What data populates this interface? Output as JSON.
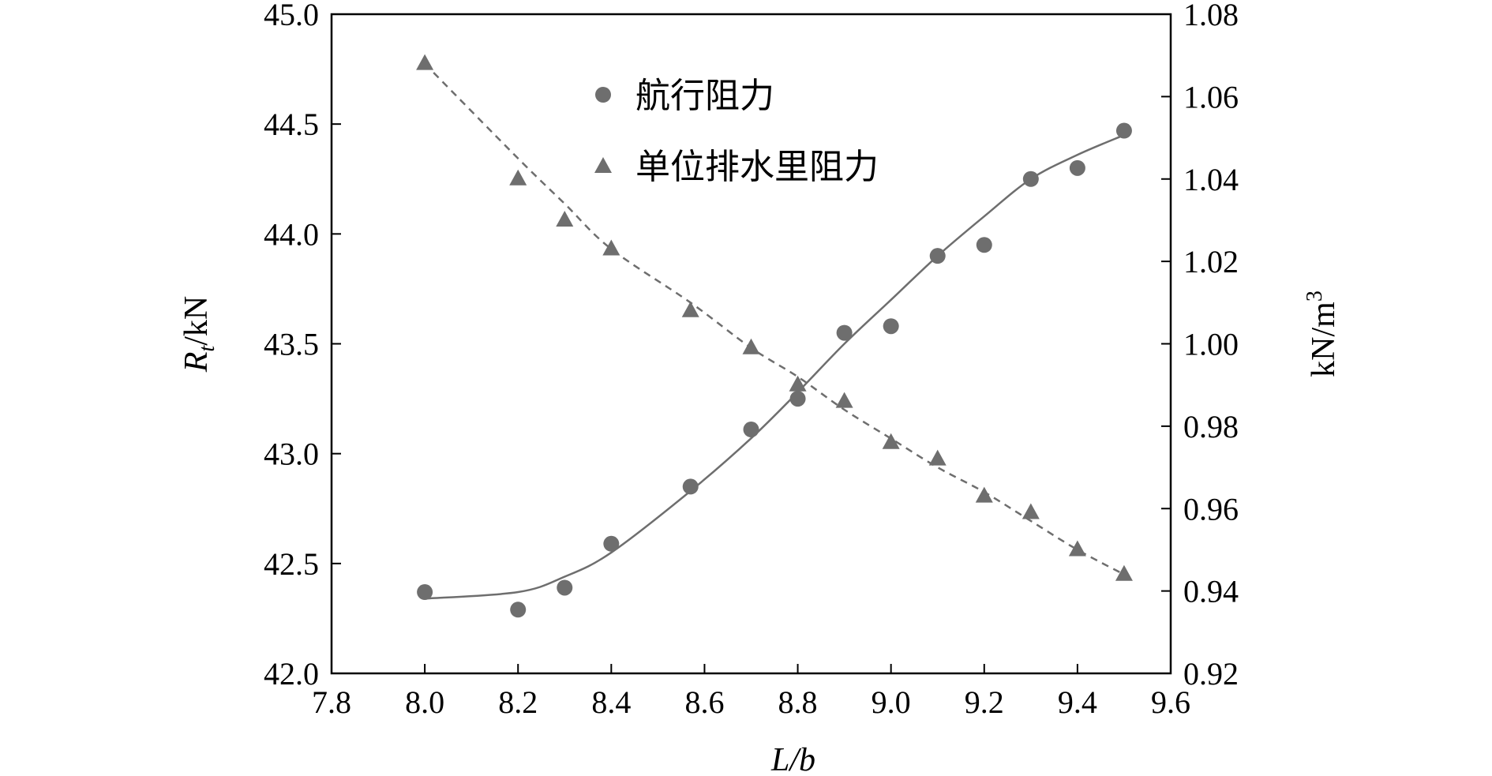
{
  "chart_data": {
    "type": "scatter",
    "x": [
      8.0,
      8.2,
      8.3,
      8.4,
      8.57,
      8.7,
      8.8,
      8.9,
      9.0,
      9.1,
      9.2,
      9.3,
      9.4,
      9.5
    ],
    "series": [
      {
        "name": "航行阻力",
        "axis": "left",
        "marker": "circle",
        "fit": "solid",
        "values": [
          42.37,
          42.29,
          42.39,
          42.59,
          42.85,
          43.11,
          43.25,
          43.55,
          43.58,
          43.9,
          43.95,
          44.25,
          44.3,
          44.47
        ],
        "fit_line": [
          42.34,
          42.37,
          42.44,
          42.55,
          42.83,
          43.07,
          43.28,
          43.5,
          43.7,
          43.9,
          44.08,
          44.25,
          44.36,
          44.45
        ]
      },
      {
        "name": "单位排水里阻力",
        "axis": "right",
        "marker": "triangle",
        "fit": "dashed",
        "values": [
          1.068,
          1.04,
          1.03,
          1.023,
          1.008,
          0.999,
          0.99,
          0.986,
          0.976,
          0.972,
          0.963,
          0.959,
          0.95,
          0.944
        ],
        "fit_line": [
          1.068,
          1.045,
          1.034,
          1.023,
          1.01,
          0.999,
          0.992,
          0.984,
          0.977,
          0.97,
          0.964,
          0.957,
          0.95,
          0.944
        ]
      }
    ],
    "xlabel": "L/b",
    "ylabel_left": "R/kN",
    "ylabel_left_subscript": "t",
    "ylabel_right": "kN/m",
    "ylabel_right_superscript": "3",
    "xlim": [
      7.8,
      9.6
    ],
    "ylim_left": [
      42.0,
      45.0
    ],
    "ylim_right": [
      0.92,
      1.08
    ],
    "xticks": [
      "7.8",
      "8.0",
      "8.2",
      "8.4",
      "8.6",
      "8.8",
      "9.0",
      "9.2",
      "9.4",
      "9.6"
    ],
    "yticks_left": [
      "42.0",
      "42.5",
      "43.0",
      "43.5",
      "44.0",
      "44.5",
      "45.0"
    ],
    "yticks_right": [
      "0.92",
      "0.94",
      "0.96",
      "0.98",
      "1.00",
      "1.02",
      "1.04",
      "1.06",
      "1.08"
    ],
    "legend_position": "top-center",
    "grid": false,
    "colors": {
      "marker": "#6e6e6e",
      "line": "#6e6e6e",
      "axis": "#000000"
    }
  }
}
